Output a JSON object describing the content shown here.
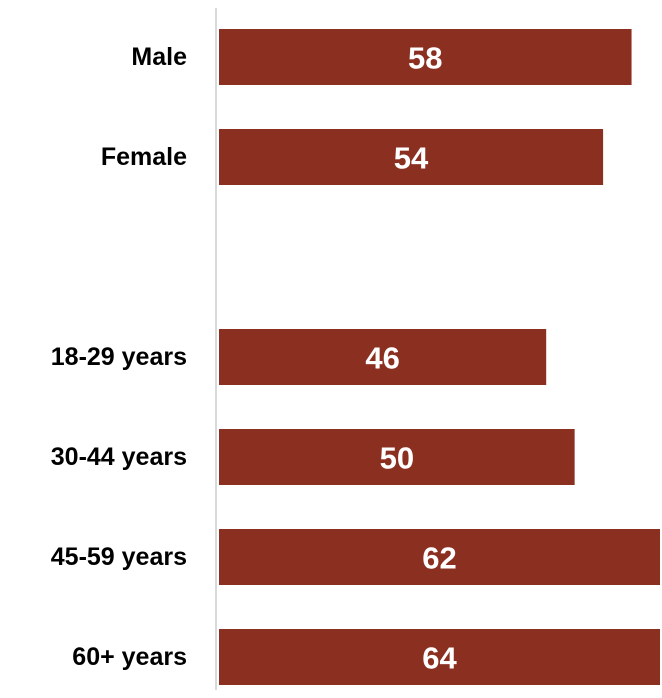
{
  "chart_data": {
    "type": "bar",
    "orientation": "horizontal",
    "categories": [
      "Male",
      "Female",
      "",
      "18-29 years",
      "30-44 years",
      "45-59 years",
      "60+ years"
    ],
    "values": [
      58,
      54,
      null,
      46,
      50,
      62,
      64
    ],
    "data_labels": [
      "58",
      "54",
      "",
      "46",
      "50",
      "62",
      "64"
    ],
    "title": "",
    "xlabel": "",
    "ylabel": "",
    "xlim": [
      0,
      62
    ],
    "grid": false,
    "legend": "none",
    "bar_color": "#8B3020",
    "axis_color": "#D9D9D9"
  }
}
